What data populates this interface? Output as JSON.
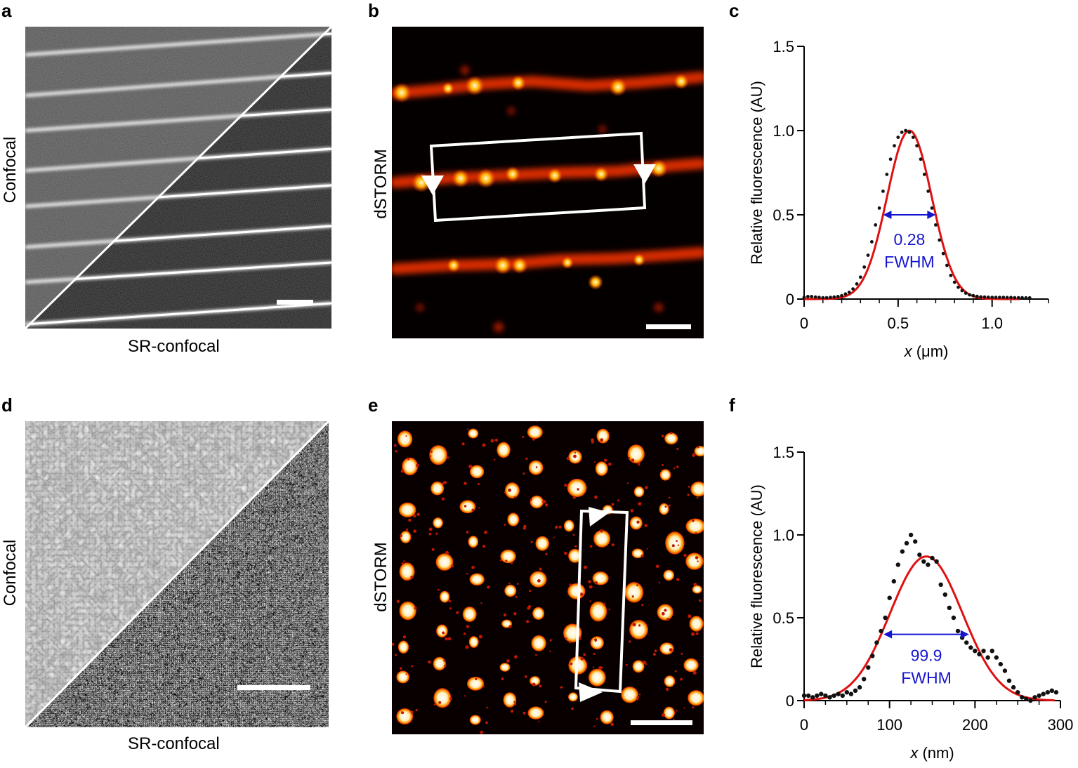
{
  "panels": [
    {
      "letter": "a",
      "ylabel": "Confocal",
      "xlabel": "SR-confocal"
    },
    {
      "letter": "b",
      "ylabel": "dSTORM"
    },
    {
      "letter": "c"
    },
    {
      "letter": "d",
      "ylabel": "Confocal",
      "xlabel": "SR-confocal"
    },
    {
      "letter": "e",
      "ylabel": "dSTORM"
    },
    {
      "letter": "f"
    }
  ],
  "chart_data": [
    {
      "type": "scatter",
      "ylabel": "Relative fluorescence (AU)",
      "xlabel_var": "x",
      "xlabel_unit": "(μm)",
      "xlim": [
        0,
        1.3
      ],
      "ylim": [
        0,
        1.5
      ],
      "xticks": [
        0,
        0.5,
        1.0
      ],
      "xtick_labels": [
        "0",
        "0.5",
        "1.0"
      ],
      "yticks": [
        0,
        0.5,
        1.0,
        1.5
      ],
      "ytick_labels": [
        "0",
        "0.5",
        "1.0",
        "1.5"
      ],
      "fwhm_value": "0.28",
      "fwhm_label": "FWHM",
      "fwhm_range": [
        0.42,
        0.7
      ],
      "fwhm_y": 0.5,
      "annotation_pos": [
        0.56,
        0.32
      ],
      "fit": {
        "type": "gaussian",
        "amplitude": 1.0,
        "center": 0.56,
        "sigma": 0.119
      },
      "series": [
        {
          "x": [
            0,
            0.02,
            0.04,
            0.06,
            0.08,
            0.1,
            0.12,
            0.14,
            0.16,
            0.18,
            0.2,
            0.22,
            0.24,
            0.26,
            0.28,
            0.3,
            0.32,
            0.34,
            0.36,
            0.38,
            0.4,
            0.42,
            0.44,
            0.46,
            0.48,
            0.5,
            0.52,
            0.54,
            0.56,
            0.58,
            0.6,
            0.62,
            0.64,
            0.66,
            0.68,
            0.7,
            0.72,
            0.74,
            0.76,
            0.78,
            0.8,
            0.82,
            0.84,
            0.86,
            0.88,
            0.9,
            0.92,
            0.94,
            0.96,
            0.98,
            1.0,
            1.02,
            1.04,
            1.06,
            1.08,
            1.1,
            1.12,
            1.14,
            1.16,
            1.18,
            1.2
          ],
          "y": [
            0.01,
            0.015,
            0.015,
            0.012,
            0.01,
            0.008,
            0.008,
            0.01,
            0.012,
            0.015,
            0.02,
            0.03,
            0.04,
            0.06,
            0.09,
            0.13,
            0.19,
            0.26,
            0.34,
            0.44,
            0.54,
            0.64,
            0.74,
            0.83,
            0.91,
            0.96,
            0.99,
            1.0,
            0.99,
            0.96,
            0.91,
            0.83,
            0.74,
            0.64,
            0.54,
            0.44,
            0.35,
            0.27,
            0.2,
            0.14,
            0.1,
            0.07,
            0.05,
            0.035,
            0.025,
            0.02,
            0.016,
            0.013,
            0.012,
            0.011,
            0.01,
            0.01,
            0.01,
            0.01,
            0.009,
            0.009,
            0.008,
            0.008,
            0.008,
            0.007,
            0.007
          ]
        }
      ]
    },
    {
      "type": "scatter",
      "ylabel": "Relative fluorescence (AU)",
      "xlabel_var": "x",
      "xlabel_unit": "(nm)",
      "xlim": [
        0,
        300
      ],
      "ylim": [
        0,
        1.5
      ],
      "xticks": [
        0,
        100,
        200,
        300
      ],
      "xtick_labels": [
        "0",
        "100",
        "200",
        "300"
      ],
      "yticks": [
        0,
        0.5,
        1.0,
        1.5
      ],
      "ytick_labels": [
        "0",
        "0.5",
        "1.0",
        "1.5"
      ],
      "fwhm_value": "99.9",
      "fwhm_label": "FWHM",
      "fwhm_range": [
        93,
        193
      ],
      "fwhm_y": 0.4,
      "annotation_pos": [
        143,
        0.24
      ],
      "fit": {
        "type": "gaussian",
        "amplitude": 0.87,
        "center": 143,
        "sigma": 42.4
      },
      "series": [
        {
          "x": [
            0,
            5,
            10,
            15,
            20,
            25,
            30,
            35,
            40,
            45,
            50,
            55,
            60,
            65,
            70,
            75,
            80,
            85,
            90,
            95,
            100,
            105,
            110,
            115,
            120,
            125,
            130,
            135,
            140,
            145,
            150,
            155,
            160,
            165,
            170,
            175,
            180,
            185,
            190,
            195,
            200,
            205,
            210,
            215,
            220,
            225,
            230,
            235,
            240,
            245,
            250,
            255,
            260,
            265,
            270,
            275,
            280,
            285,
            290,
            295
          ],
          "y": [
            0.03,
            0.03,
            0.02,
            0.03,
            0.04,
            0.03,
            0.02,
            0.03,
            0.04,
            0.03,
            0.05,
            0.04,
            0.06,
            0.08,
            0.13,
            0.2,
            0.27,
            0.35,
            0.42,
            0.5,
            0.62,
            0.72,
            0.82,
            0.9,
            0.95,
            1.0,
            0.96,
            0.88,
            0.84,
            0.82,
            0.86,
            0.84,
            0.7,
            0.64,
            0.56,
            0.5,
            0.42,
            0.38,
            0.35,
            0.32,
            0.3,
            0.28,
            0.3,
            0.26,
            0.3,
            0.26,
            0.22,
            0.18,
            0.12,
            0.08,
            0.05,
            0.02,
            0.01,
            0.0,
            0.02,
            0.03,
            0.04,
            0.05,
            0.06,
            0.05
          ]
        }
      ]
    }
  ]
}
